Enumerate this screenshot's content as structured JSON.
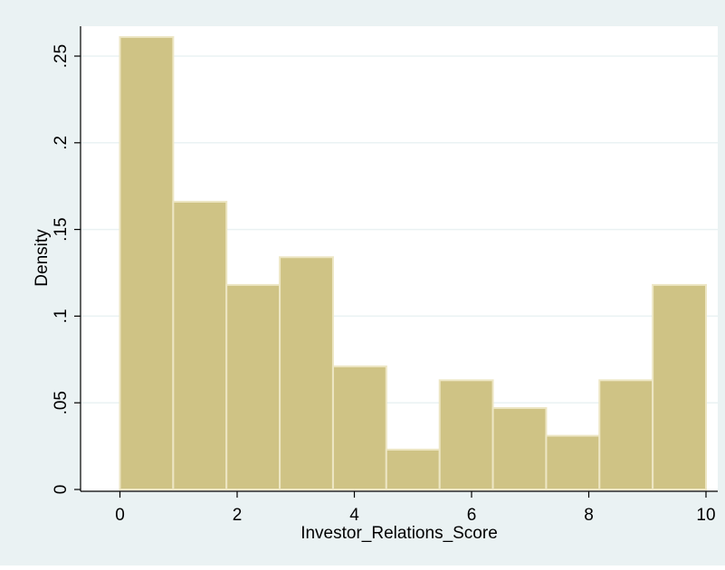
{
  "chart_data": {
    "type": "bar",
    "subtype": "histogram",
    "title": "",
    "xlabel": "Investor_Relations_Score",
    "ylabel": "Density",
    "xlim": [
      -0.7,
      10.2
    ],
    "ylim": [
      0,
      0.27
    ],
    "x_ticks": [
      "0",
      "2",
      "4",
      "6",
      "8",
      "10"
    ],
    "y_ticks": [
      "0",
      ".05",
      ".1",
      ".15",
      ".2",
      ".25"
    ],
    "bins": [
      {
        "start": 0.0,
        "end": 0.909,
        "value": 0.261
      },
      {
        "start": 0.909,
        "end": 1.818,
        "value": 0.166
      },
      {
        "start": 1.818,
        "end": 2.727,
        "value": 0.118
      },
      {
        "start": 2.727,
        "end": 3.636,
        "value": 0.134
      },
      {
        "start": 3.636,
        "end": 4.545,
        "value": 0.071
      },
      {
        "start": 4.545,
        "end": 5.455,
        "value": 0.023
      },
      {
        "start": 5.455,
        "end": 6.364,
        "value": 0.063
      },
      {
        "start": 6.364,
        "end": 7.273,
        "value": 0.047
      },
      {
        "start": 7.273,
        "end": 8.182,
        "value": 0.031
      },
      {
        "start": 8.182,
        "end": 9.091,
        "value": 0.063
      },
      {
        "start": 9.091,
        "end": 10.0,
        "value": 0.118
      }
    ],
    "grid": true,
    "colors": {
      "outer_background": "#eaf2f3",
      "plot_background": "#ffffff",
      "bar_fill": "#cfc385",
      "bar_edge": "#ede6c4",
      "gridline": "#eaf2f3",
      "axis": "#000000"
    }
  }
}
